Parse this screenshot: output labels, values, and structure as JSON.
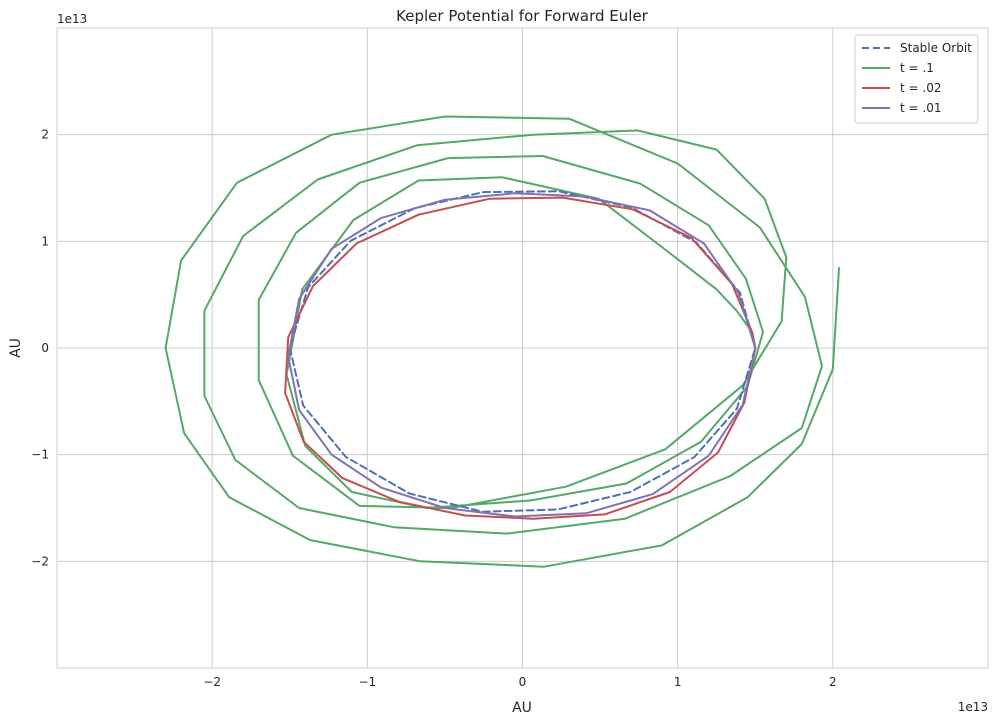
{
  "chart_data": {
    "type": "line",
    "title": "Kepler Potential for Forward Euler",
    "xlabel": "AU",
    "ylabel": "AU",
    "x_offset_text": "1e13",
    "y_offset_text": "1e13",
    "xlim": [
      -30000000000000.0,
      30000000000000.0
    ],
    "ylim": [
      -30000000000000.0,
      30000000000000.0
    ],
    "xticks": [
      -20000000000000.0,
      -10000000000000.0,
      0,
      10000000000000.0,
      20000000000000.0
    ],
    "yticks": [
      -20000000000000.0,
      -10000000000000.0,
      0,
      10000000000000.0,
      20000000000000.0
    ],
    "xtick_labels": [
      "−2",
      "−1",
      "0",
      "1",
      "2"
    ],
    "ytick_labels": [
      "−2",
      "−1",
      "0",
      "1",
      "2"
    ],
    "grid": true,
    "legend_position": "top-right",
    "series": [
      {
        "name": "Stable Orbit",
        "color": "#4c72b0",
        "style": "dashed",
        "x": [
          15000000000000.0,
          14020000000000.0,
          11210000000000.0,
          7020000000000.0,
          2310000000000.0,
          -2530000000000.0,
          -6950000000000.0,
          -11070000000000.0,
          -13820000000000.0,
          -15000000000000.0,
          -14130000000000.0,
          -11390000000000.0,
          -7290000000000.0,
          -2580000000000.0,
          2270000000000.0,
          6970000000000.0,
          11070000000000.0,
          13820000000000.0,
          15000000000000.0
        ],
        "y": [
          0,
          5180000000000.0,
          9890000000000.0,
          13170000000000.0,
          14700000000000.0,
          14620000000000.0,
          13110000000000.0,
          10050000000000.0,
          5690000000000.0,
          0,
          -5390000000000.0,
          -10210000000000.0,
          -13640000000000.0,
          -15350000000000.0,
          -15140000000000.0,
          -13490000000000.0,
          -10230000000000.0,
          -5690000000000.0,
          0
        ]
      },
      {
        "name": "t = .1",
        "color": "#55a868",
        "style": "solid",
        "x": [
          15000000000000.0,
          14800000000000.0,
          13800000000000.0,
          12500000000000.0,
          9400000000000.0,
          4900000000000.0,
          -1300000000000.0,
          -6700000000000.0,
          -10900000000000.0,
          -14200000000000.0,
          -15200000000000.0,
          -14000000000000.0,
          -11000000000000.0,
          -6200000000000.0,
          500000000000.0,
          6700000000000.0,
          11500000000000.0,
          14500000000000.0,
          15500000000000.0,
          14400000000000.0,
          12000000000000.0,
          7600000000000.0,
          1300000000000.0,
          -4800000000000.0,
          -10500000000000.0,
          -14600000000000.0,
          -17000000000000.0,
          -17000000000000.0,
          -14800000000000.0,
          -10500000000000.0,
          -4600000000000.0,
          2800000000000.0,
          9200000000000.0,
          14200000000000.0,
          16700000000000.0,
          17000000000000.0,
          15600000000000.0,
          12500000000000.0,
          7400000000000.0,
          700000000000.0,
          -6800000000000.0,
          -13200000000000.0,
          -18000000000000.0,
          -20500000000000.0,
          -20500000000000.0,
          -18500000000000.0,
          -14400000000000.0,
          -8300000000000.0,
          -1000000000000.0,
          6600000000000.0,
          13400000000000.0,
          18000000000000.0,
          19300000000000.0,
          18200000000000.0,
          15300000000000.0,
          10000000000000.0,
          3000000000000.0,
          -5000000000000.0,
          -12300000000000.0,
          -18400000000000.0,
          -22000000000000.0,
          -23000000000000.0,
          -21800000000000.0,
          -18900000000000.0,
          -13700000000000.0,
          -6600000000000.0,
          1400000000000.0,
          9000000000000.0,
          14500000000000.0,
          18000000000000.0,
          20000000000000.0,
          20400000000000.0
        ],
        "y": [
          0,
          1500000000000.0,
          3500000000000.0,
          5500000000000.0,
          9000000000000.0,
          14000000000000.0,
          16000000000000.0,
          15700000000000.0,
          12000000000000.0,
          5500000000000.0,
          -2500000000000.0,
          -9200000000000.0,
          -13500000000000.0,
          -15000000000000.0,
          -14300000000000.0,
          -12700000000000.0,
          -8800000000000.0,
          -3600000000000.0,
          1500000000000.0,
          6500000000000.0,
          11500000000000.0,
          15400000000000.0,
          18000000000000.0,
          17800000000000.0,
          15500000000000.0,
          10800000000000.0,
          4500000000000.0,
          -3000000000000.0,
          -10100000000000.0,
          -14800000000000.0,
          -15000000000000.0,
          -13000000000000.0,
          -9500000000000.0,
          -3500000000000.0,
          2500000000000.0,
          8500000000000.0,
          14000000000000.0,
          18600000000000.0,
          20400000000000.0,
          20000000000000.0,
          19000000000000.0,
          15800000000000.0,
          10500000000000.0,
          3500000000000.0,
          -4500000000000.0,
          -10500000000000.0,
          -15000000000000.0,
          -16800000000000.0,
          -17400000000000.0,
          -16000000000000.0,
          -12000000000000.0,
          -7500000000000.0,
          -1700000000000.0,
          4800000000000.0,
          11300000000000.0,
          17300000000000.0,
          21500000000000.0,
          21700000000000.0,
          20000000000000.0,
          15500000000000.0,
          8200000000000.0,
          0,
          -8000000000000.0,
          -14000000000000.0,
          -18000000000000.0,
          -20000000000000.0,
          -20500000000000.0,
          -18500000000000.0,
          -14000000000000.0,
          -9000000000000.0,
          -2000000000000.0,
          7500000000000.0
        ]
      },
      {
        "name": "t = .02",
        "color": "#c44e52",
        "style": "solid",
        "x": [
          15000000000000.0,
          14300000000000.0,
          12600000000000.0,
          9500000000000.0,
          5300000000000.0,
          700000000000.0,
          -3700000000000.0,
          -8000000000000.0,
          -11600000000000.0,
          -14100000000000.0,
          -15300000000000.0,
          -15100000000000.0,
          -13500000000000.0,
          -10700000000000.0,
          -6700000000000.0,
          -2100000000000.0,
          2600000000000.0,
          7100000000000.0,
          10900000000000.0,
          13500000000000.0,
          14800000000000.0,
          15000000000000.0
        ],
        "y": [
          0,
          -5100000000000.0,
          -9800000000000.0,
          -13500000000000.0,
          -15600000000000.0,
          -16000000000000.0,
          -15700000000000.0,
          -14400000000000.0,
          -12200000000000.0,
          -8800000000000.0,
          -4200000000000.0,
          1000000000000.0,
          5800000000000.0,
          9800000000000.0,
          12500000000000.0,
          14000000000000.0,
          14100000000000.0,
          13000000000000.0,
          10300000000000.0,
          6000000000000.0,
          1500000000000.0,
          0
        ]
      },
      {
        "name": "t = .01",
        "color": "#8172b2",
        "style": "solid",
        "x": [
          15000000000000.0,
          14200000000000.0,
          12000000000000.0,
          8400000000000.0,
          4100000000000.0,
          -500000000000.0,
          -5000000000000.0,
          -9100000000000.0,
          -12300000000000.0,
          -14400000000000.0,
          -15100000000000.0,
          -14400000000000.0,
          -12300000000000.0,
          -9100000000000.0,
          -5000000000000.0,
          -500000000000.0,
          4000000000000.0,
          8200000000000.0,
          11700000000000.0,
          13900000000000.0,
          15000000000000.0
        ],
        "y": [
          0,
          -5300000000000.0,
          -10100000000000.0,
          -13700000000000.0,
          -15500000000000.0,
          -15800000000000.0,
          -15000000000000.0,
          -13100000000000.0,
          -10000000000000.0,
          -5800000000000.0,
          -800000000000.0,
          4600000000000.0,
          9300000000000.0,
          12200000000000.0,
          13900000000000.0,
          14500000000000.0,
          14200000000000.0,
          12900000000000.0,
          9800000000000.0,
          5200000000000.0,
          0
        ]
      }
    ]
  }
}
